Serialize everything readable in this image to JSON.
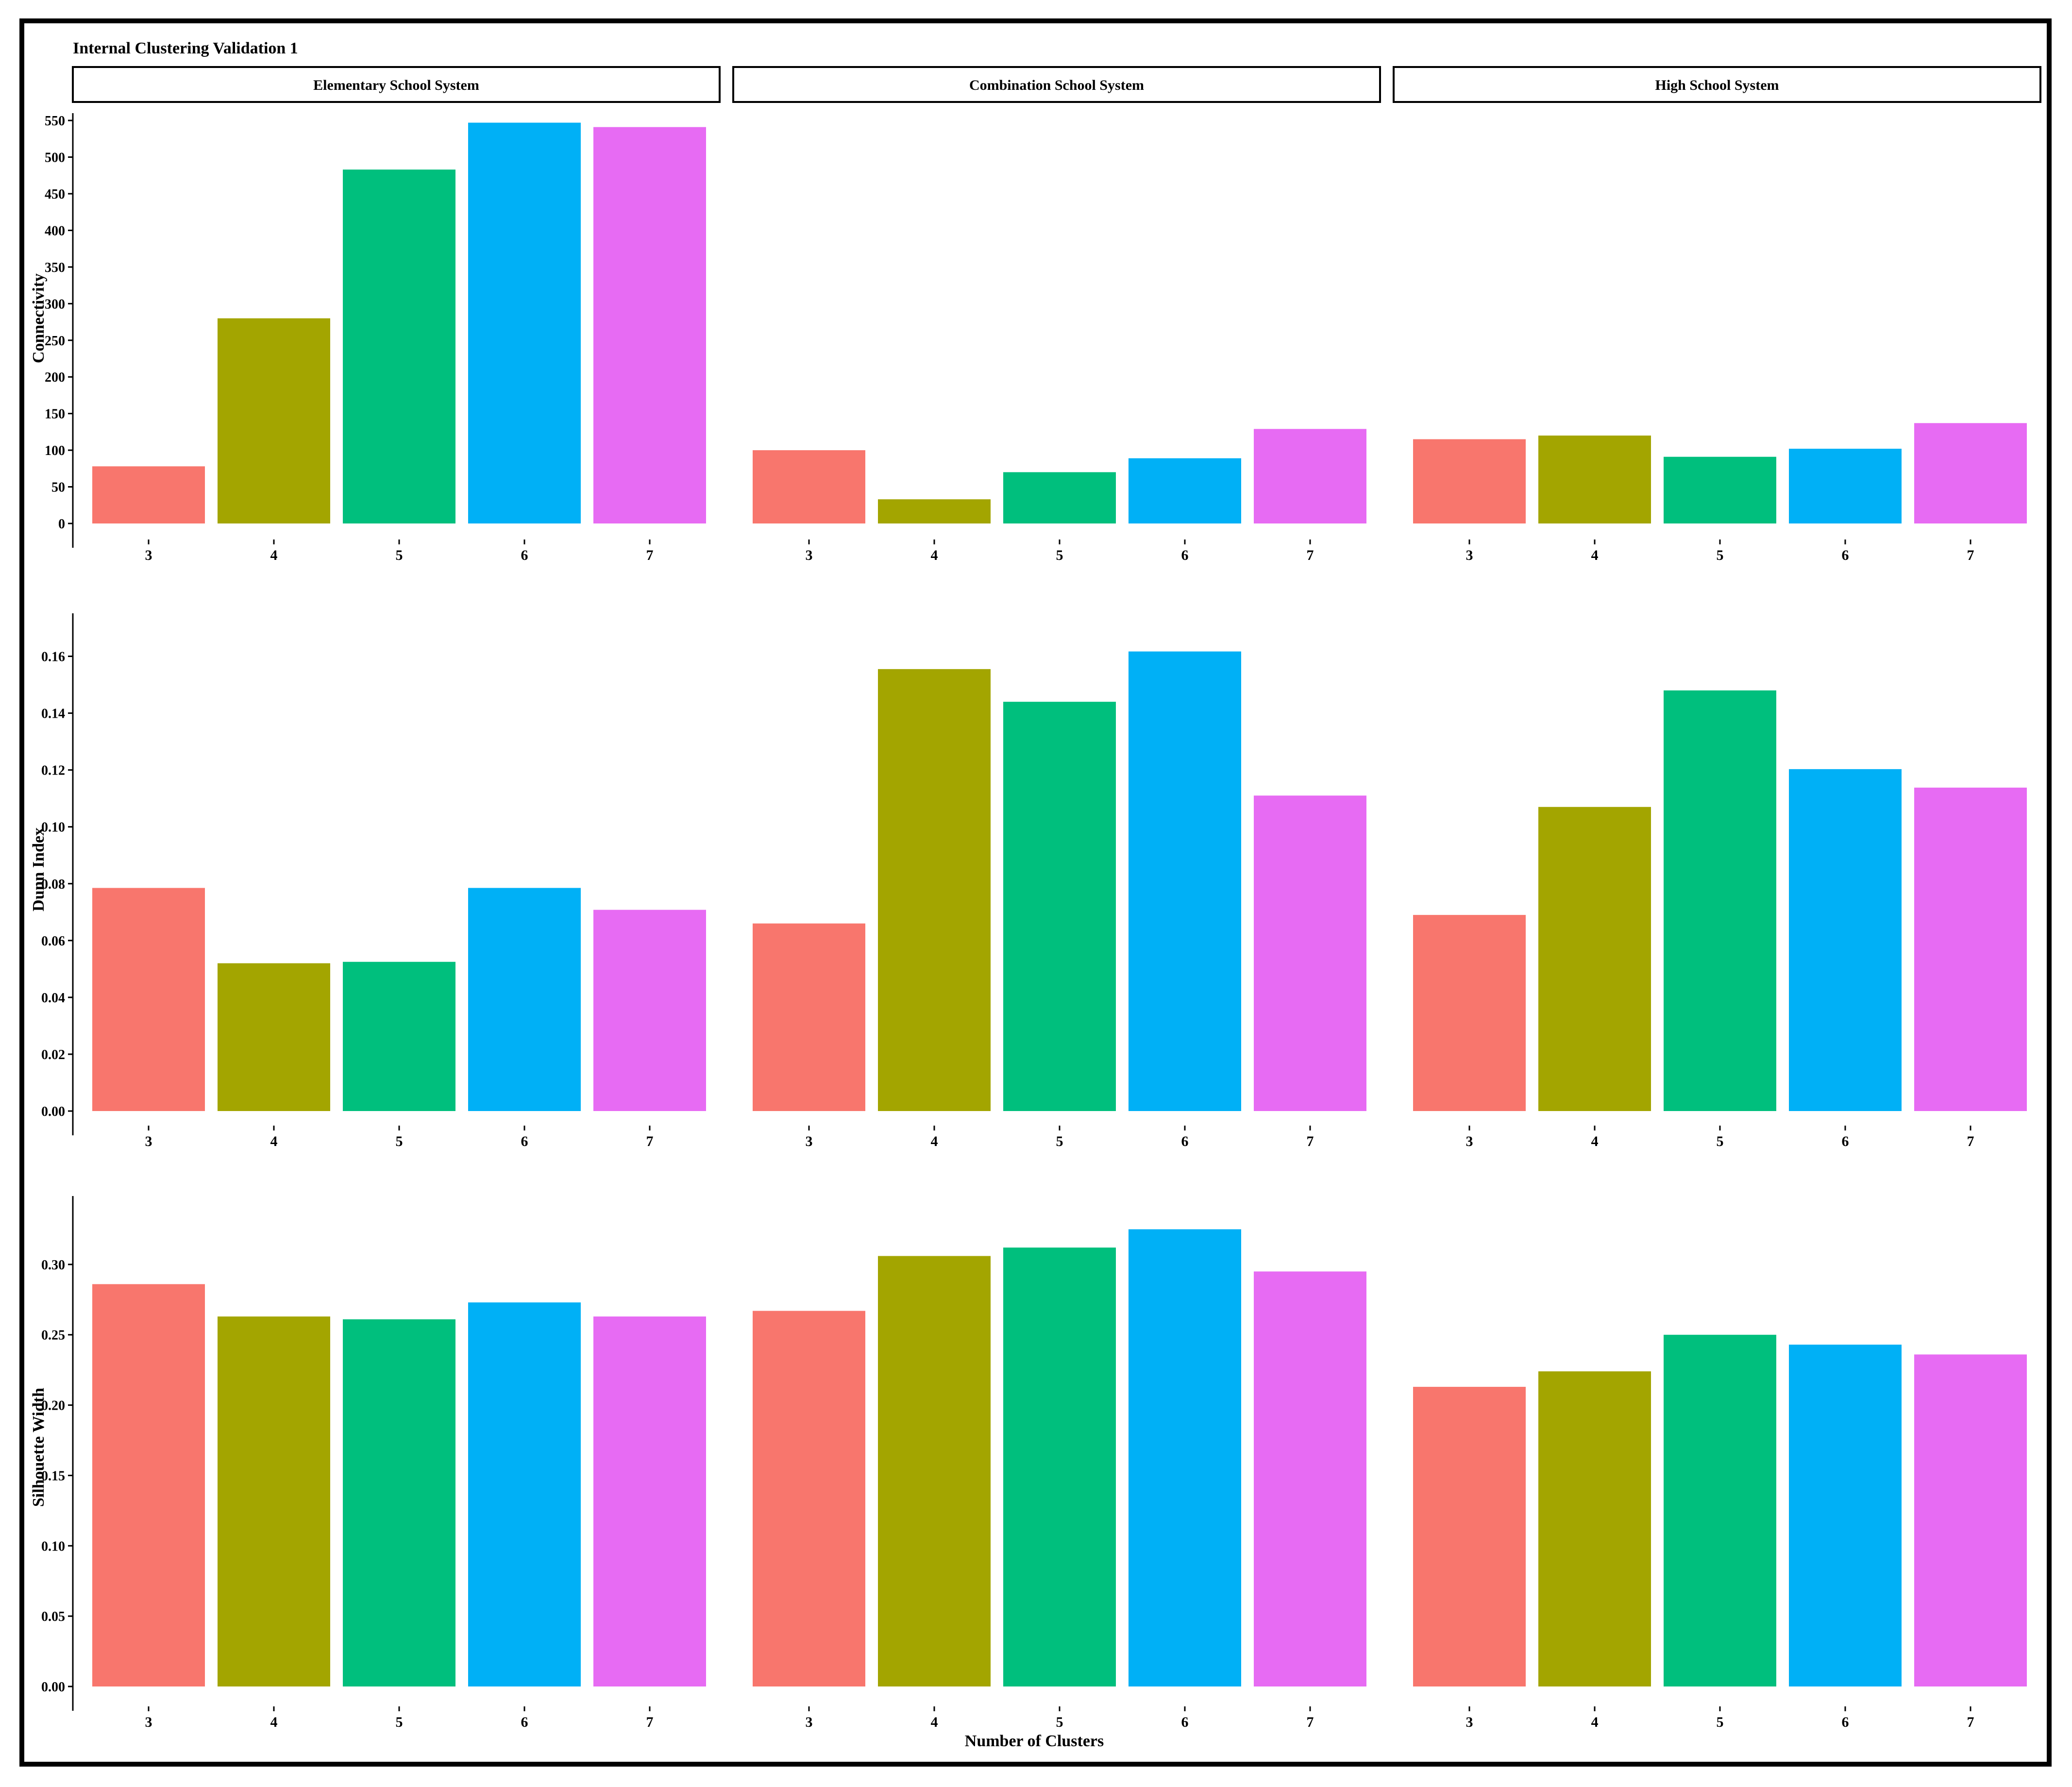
{
  "chart_data": {
    "type": "bar",
    "title": "Internal Clustering Validation 1",
    "xlabel": "Number of Clusters",
    "facets": [
      "Elementary School System",
      "Combination School System",
      "High School System"
    ],
    "categories": [
      "3",
      "4",
      "5",
      "6",
      "7"
    ],
    "colors": [
      "#F8766D",
      "#A3A500",
      "#00BF7D",
      "#00B0F6",
      "#E76BF3"
    ],
    "rows": [
      {
        "ylabel": "Connectivity",
        "ylim": [
          0,
          560
        ],
        "yticks": [
          0,
          50,
          100,
          150,
          200,
          250,
          300,
          350,
          400,
          450,
          500,
          550
        ],
        "ytick_labels": [
          "0",
          "50",
          "100",
          "150",
          "200",
          "250",
          "300",
          "350",
          "400",
          "450",
          "500",
          "550"
        ],
        "values": [
          [
            78,
            280,
            483,
            547,
            541
          ],
          [
            100,
            33,
            70,
            89,
            129
          ],
          [
            115,
            120,
            91,
            102,
            137
          ]
        ]
      },
      {
        "ylabel": "Dunn Index",
        "ylim": [
          0,
          0.17
        ],
        "yticks": [
          0,
          0.02,
          0.04,
          0.06,
          0.08,
          0.1,
          0.12,
          0.14,
          0.16
        ],
        "ytick_labels": [
          "0.00",
          "0.02",
          "0.04",
          "0.06",
          "0.08",
          "0.10",
          "0.12",
          "0.14",
          "0.16"
        ],
        "values": [
          [
            0.0785,
            0.052,
            0.0525,
            0.0785,
            0.0708
          ],
          [
            0.066,
            0.1555,
            0.144,
            0.1617,
            0.111
          ],
          [
            0.069,
            0.107,
            0.148,
            0.1203,
            0.1138
          ]
        ]
      },
      {
        "ylabel": "Silhouette Width",
        "ylim": [
          0,
          0.34
        ],
        "yticks": [
          0,
          0.05,
          0.1,
          0.15,
          0.2,
          0.25,
          0.3
        ],
        "ytick_labels": [
          "0.00",
          "0.05",
          "0.10",
          "0.15",
          "0.20",
          "0.25",
          "0.30"
        ],
        "values": [
          [
            0.286,
            0.263,
            0.261,
            0.273,
            0.263
          ],
          [
            0.267,
            0.306,
            0.312,
            0.325,
            0.295
          ],
          [
            0.213,
            0.224,
            0.25,
            0.243,
            0.236
          ]
        ]
      }
    ]
  }
}
